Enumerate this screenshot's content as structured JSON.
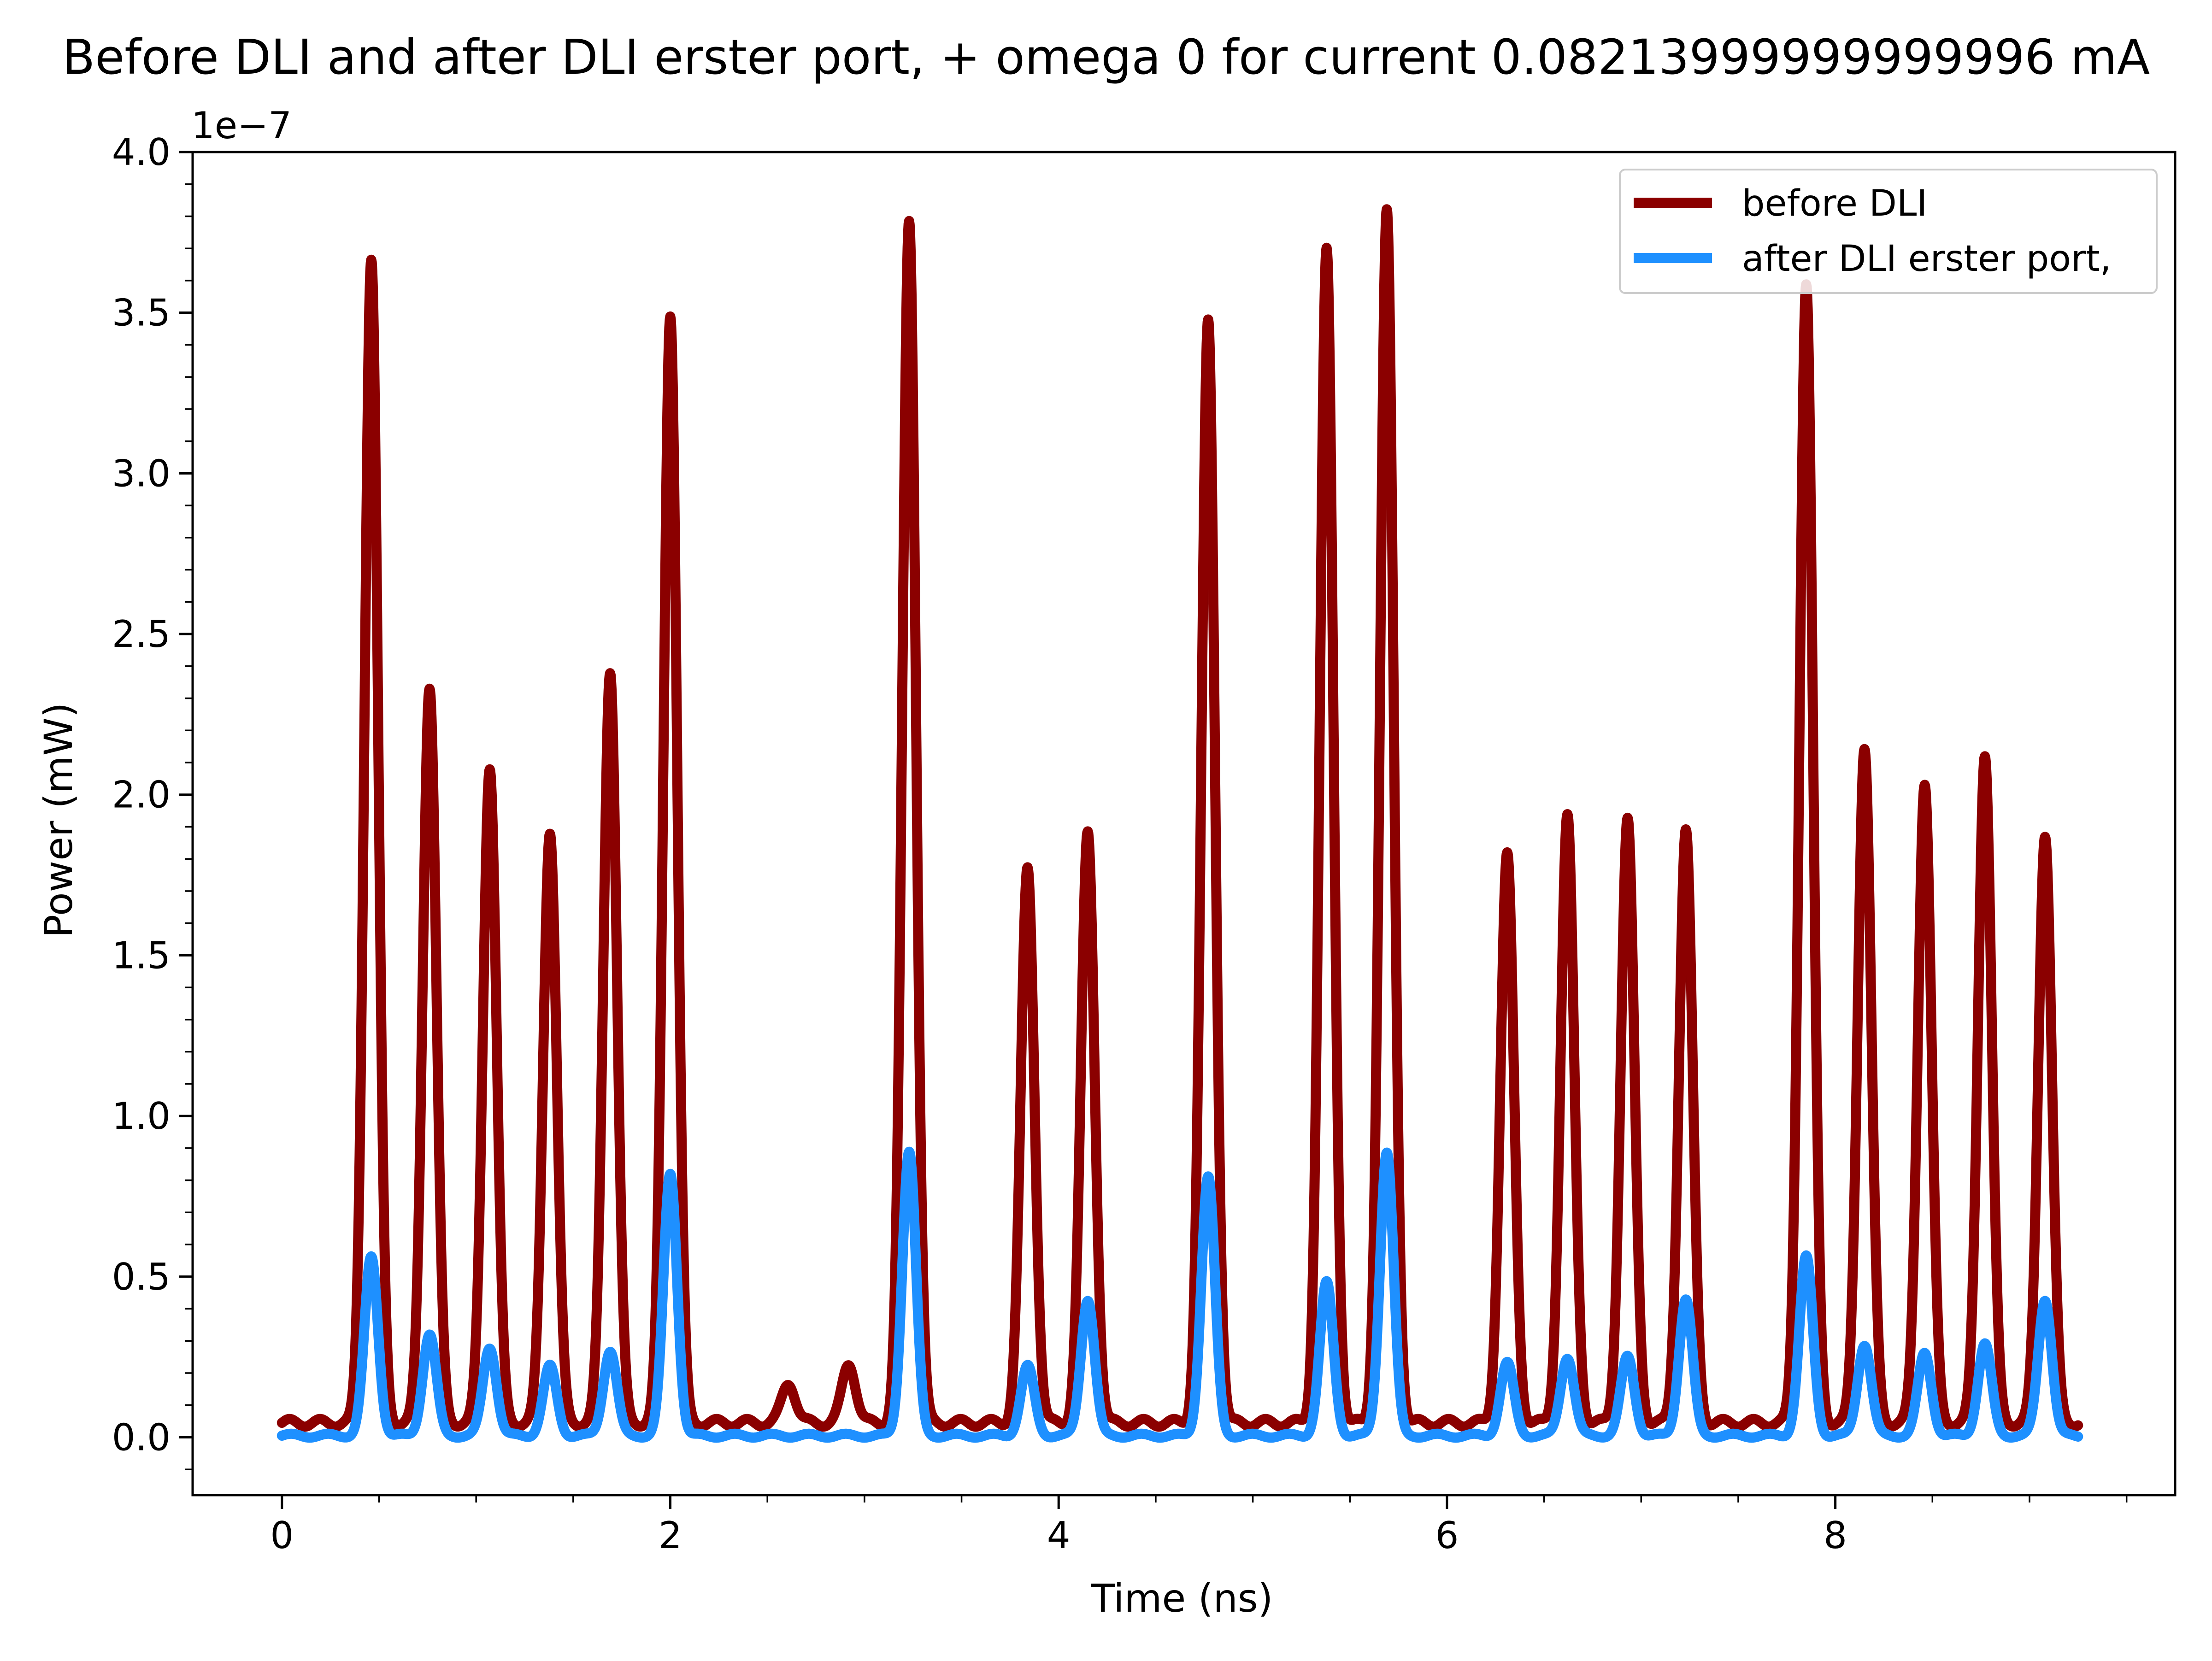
{
  "chart_data": {
    "type": "line",
    "title": "Before DLI and after DLI erster port, + omega 0 for current 0.08213999999999996 mA",
    "xlabel": "Time (ns)",
    "ylabel": "Power (mW)",
    "y_offset_label": "1e−7",
    "y_scale_factor": 1e-07,
    "xlim": [
      -0.46,
      9.75
    ],
    "ylim": [
      -0.18,
      4.0
    ],
    "x_ticks": [
      0,
      2,
      4,
      6,
      8
    ],
    "x_tick_labels": [
      "0",
      "2",
      "4",
      "6",
      "8"
    ],
    "y_ticks": [
      0.0,
      0.5,
      1.0,
      1.5,
      2.0,
      2.5,
      3.0,
      3.5,
      4.0
    ],
    "y_tick_labels": [
      "0.0",
      "0.5",
      "1.0",
      "1.5",
      "2.0",
      "2.5",
      "3.0",
      "3.5",
      "4.0"
    ],
    "x_range": [
      0,
      9.25
    ],
    "baseline": {
      "before": 0.045,
      "after": 0.005
    },
    "pulse_width_ns": 0.035,
    "legend": {
      "placement": "upper-right"
    },
    "grid": false,
    "series": [
      {
        "name": "before DLI",
        "color": "#8b0000",
        "peaks": [
          {
            "t": 0.46,
            "v": 3.67
          },
          {
            "t": 0.76,
            "v": 2.34
          },
          {
            "t": 1.07,
            "v": 2.09
          },
          {
            "t": 1.38,
            "v": 1.89
          },
          {
            "t": 1.69,
            "v": 2.39
          },
          {
            "t": 2.0,
            "v": 3.5
          },
          {
            "t": 2.61,
            "v": 0.17
          },
          {
            "t": 2.92,
            "v": 0.23
          },
          {
            "t": 3.23,
            "v": 3.79
          },
          {
            "t": 3.84,
            "v": 1.77
          },
          {
            "t": 4.15,
            "v": 1.88
          },
          {
            "t": 4.77,
            "v": 3.47
          },
          {
            "t": 5.38,
            "v": 3.69
          },
          {
            "t": 5.69,
            "v": 3.81
          },
          {
            "t": 6.31,
            "v": 1.81
          },
          {
            "t": 6.62,
            "v": 1.93
          },
          {
            "t": 6.93,
            "v": 1.92
          },
          {
            "t": 7.23,
            "v": 1.89
          },
          {
            "t": 7.85,
            "v": 3.59
          },
          {
            "t": 8.15,
            "v": 2.15
          },
          {
            "t": 8.46,
            "v": 2.04
          },
          {
            "t": 8.77,
            "v": 2.13
          },
          {
            "t": 9.08,
            "v": 1.88
          }
        ]
      },
      {
        "name": "after DLI erster port,",
        "color": "#1e90ff",
        "peaks": [
          {
            "t": 0.46,
            "v": 0.56
          },
          {
            "t": 0.76,
            "v": 0.32
          },
          {
            "t": 1.07,
            "v": 0.28
          },
          {
            "t": 1.38,
            "v": 0.22
          },
          {
            "t": 1.69,
            "v": 0.27
          },
          {
            "t": 2.0,
            "v": 0.82
          },
          {
            "t": 3.23,
            "v": 0.89
          },
          {
            "t": 3.84,
            "v": 0.22
          },
          {
            "t": 4.15,
            "v": 0.43
          },
          {
            "t": 4.77,
            "v": 0.81
          },
          {
            "t": 5.38,
            "v": 0.48
          },
          {
            "t": 5.69,
            "v": 0.89
          },
          {
            "t": 6.31,
            "v": 0.23
          },
          {
            "t": 6.62,
            "v": 0.25
          },
          {
            "t": 6.93,
            "v": 0.25
          },
          {
            "t": 7.23,
            "v": 0.43
          },
          {
            "t": 7.85,
            "v": 0.56
          },
          {
            "t": 8.15,
            "v": 0.29
          },
          {
            "t": 8.46,
            "v": 0.26
          },
          {
            "t": 8.77,
            "v": 0.29
          },
          {
            "t": 9.08,
            "v": 0.43
          }
        ]
      }
    ]
  }
}
